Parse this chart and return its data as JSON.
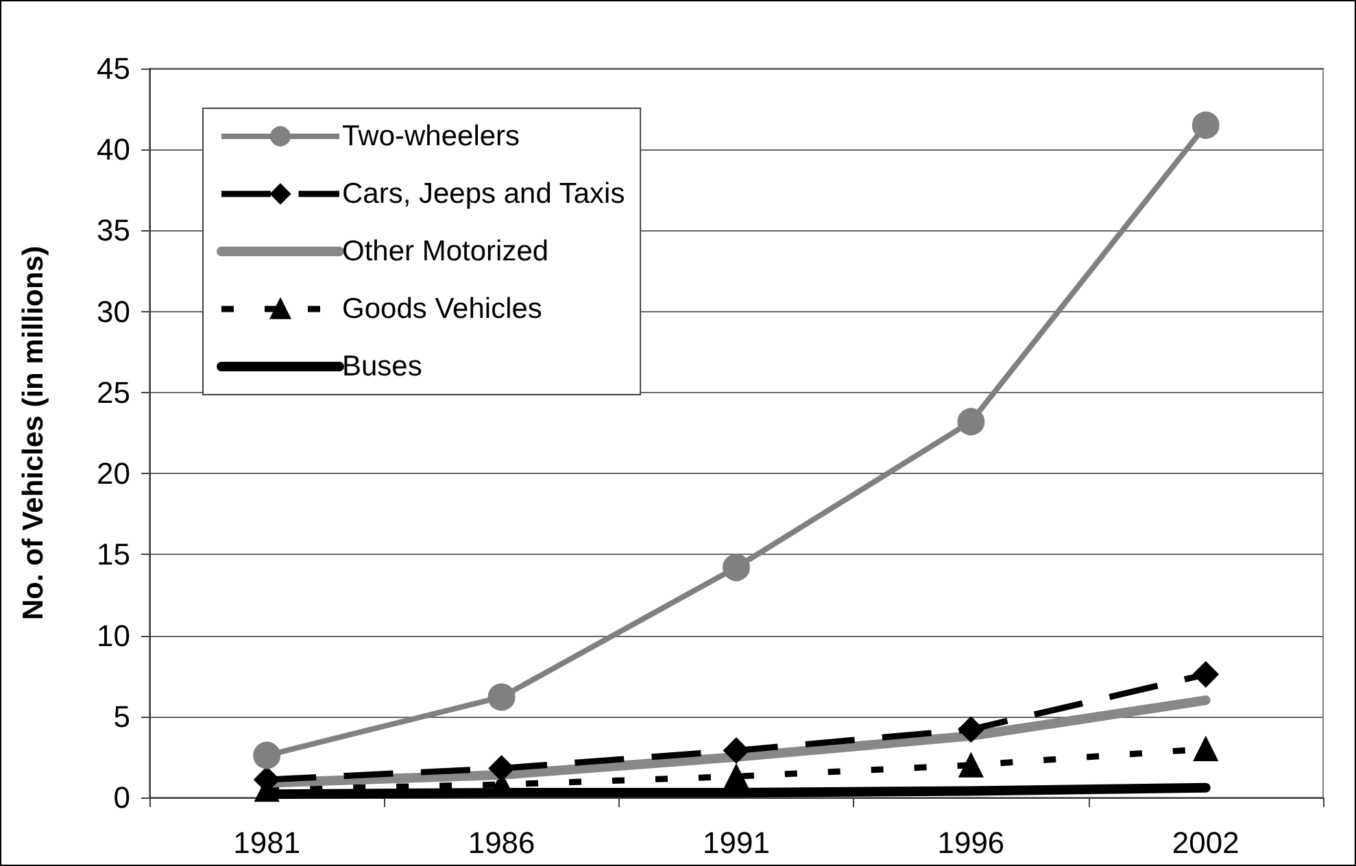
{
  "chart_data": {
    "type": "line",
    "ylabel": "No. of Vehicles (in millions)",
    "categories": [
      "1981",
      "1986",
      "1991",
      "1996",
      "2002"
    ],
    "series": [
      {
        "name": "Two-wheelers",
        "color": "#808080",
        "marker": "circle",
        "line_style": "solid",
        "values": [
          2.6,
          6.2,
          14.2,
          23.2,
          41.5
        ]
      },
      {
        "name": "Cars, Jeeps and Taxis",
        "color": "#000000",
        "marker": "diamond",
        "line_style": "dashed",
        "values": [
          1.1,
          1.8,
          2.9,
          4.2,
          7.6
        ]
      },
      {
        "name": "Other Motorized",
        "color": "#888888",
        "marker": "none",
        "line_style": "solid",
        "values": [
          0.9,
          1.4,
          2.5,
          3.8,
          6.0
        ]
      },
      {
        "name": "Goods Vehicles",
        "color": "#000000",
        "marker": "triangle",
        "line_style": "dotted",
        "values": [
          0.5,
          0.8,
          1.3,
          2.0,
          3.0
        ]
      },
      {
        "name": "Buses",
        "color": "#000000",
        "marker": "none",
        "line_style": "solid",
        "values": [
          0.2,
          0.3,
          0.3,
          0.4,
          0.6
        ]
      }
    ],
    "ylim": [
      0,
      45
    ],
    "yticks": [
      0,
      5,
      10,
      15,
      20,
      25,
      30,
      35,
      40,
      45
    ],
    "grid": "y",
    "legend": "top left"
  }
}
